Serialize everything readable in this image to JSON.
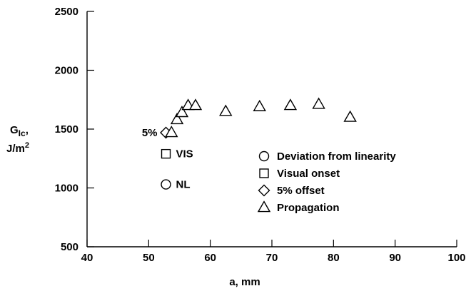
{
  "chart_data": {
    "type": "scatter",
    "title": "",
    "xlabel": "a, mm",
    "ylabel_line1": "G",
    "ylabel_sub": "Ic",
    "ylabel_comma": ",",
    "ylabel_line2": "J/m",
    "ylabel_sup": "2",
    "xlim": [
      40,
      100
    ],
    "ylim": [
      500,
      2500
    ],
    "x_ticks": [
      40,
      50,
      60,
      70,
      80,
      90,
      100
    ],
    "y_ticks": [
      500,
      1000,
      1500,
      2000,
      2500
    ],
    "grid": false,
    "legend_placement": "center-right",
    "series": [
      {
        "name": "Deviation from linearity",
        "marker": "circle",
        "points": [
          [
            52.8,
            1030
          ]
        ]
      },
      {
        "name": "Visual onset",
        "marker": "square",
        "points": [
          [
            52.8,
            1290
          ]
        ]
      },
      {
        "name": "5% offset",
        "marker": "diamond",
        "points": [
          [
            52.8,
            1470
          ]
        ]
      },
      {
        "name": "Propagation",
        "marker": "triangle",
        "points": [
          [
            53.7,
            1470
          ],
          [
            54.6,
            1580
          ],
          [
            55.4,
            1640
          ],
          [
            56.4,
            1700
          ],
          [
            57.6,
            1700
          ],
          [
            62.5,
            1650
          ],
          [
            68.0,
            1690
          ],
          [
            73.0,
            1700
          ],
          [
            77.6,
            1710
          ],
          [
            82.7,
            1600
          ]
        ]
      }
    ],
    "annotations": [
      {
        "text": "5%",
        "x": 52.8,
        "y": 1470,
        "side": "left"
      },
      {
        "text": "VIS",
        "x": 52.8,
        "y": 1290,
        "side": "right"
      },
      {
        "text": "NL",
        "x": 52.8,
        "y": 1030,
        "side": "right"
      }
    ],
    "colors": {
      "ink": "#000000",
      "background": "#ffffff"
    }
  }
}
